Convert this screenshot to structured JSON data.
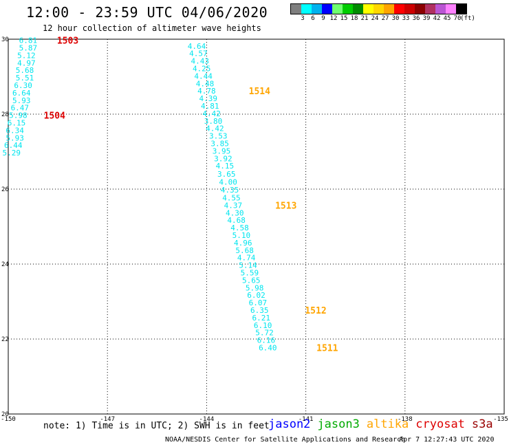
{
  "header": {
    "title": "12:00 - 23:59 UTC 04/06/2020",
    "subtitle": "12 hour collection of altimeter wave heights"
  },
  "legend": {
    "colors": [
      "#7f7f7f",
      "#00ffff",
      "#00b2ee",
      "#0000ff",
      "#6fff6f",
      "#00cc00",
      "#008b00",
      "#ffff00",
      "#ffd700",
      "#ffa500",
      "#ff0000",
      "#cd0000",
      "#8b0000",
      "#b03060",
      "#ba55d3",
      "#ff82ff",
      "#000000"
    ],
    "labels": [
      "3",
      "6",
      "9",
      "12",
      "15",
      "18",
      "21",
      "24",
      "27",
      "30",
      "33",
      "36",
      "39",
      "42",
      "45",
      "70",
      "(ft)"
    ]
  },
  "footer": {
    "note": "note: 1) Time is in UTC; 2) SWH is in feet",
    "satellites": [
      {
        "name": "jason2",
        "color": "#0000ff"
      },
      {
        "name": "jason3",
        "color": "#00aa00"
      },
      {
        "name": "altika",
        "color": "#ffa500"
      },
      {
        "name": "cryosat",
        "color": "#dd0000"
      },
      {
        "name": "s3a",
        "color": "#990000"
      }
    ],
    "credit": "NOAA/NESDIS Center for Satellite Applications and Research",
    "timestamp": "Apr  7 12:27:43 UTC 2020"
  },
  "chart_data": {
    "type": "scatter",
    "xlim": [
      -150,
      -135
    ],
    "ylim": [
      20,
      30
    ],
    "x_ticks": [
      "-150",
      "-147",
      "-144",
      "-141",
      "-138",
      "-135"
    ],
    "y_ticks": [
      "30",
      "28",
      "26",
      "24",
      "22",
      "20"
    ],
    "grid": true,
    "value_color": "#00e5ee",
    "series": [
      {
        "points": [
          {
            "lon": -149.4,
            "lat": 29.97,
            "swh": "6.81"
          },
          {
            "lon": -149.4,
            "lat": 29.77,
            "swh": "5.87"
          },
          {
            "lon": -149.45,
            "lat": 29.57,
            "swh": "5.12"
          },
          {
            "lon": -149.45,
            "lat": 29.37,
            "swh": "4.97"
          },
          {
            "lon": -149.5,
            "lat": 29.17,
            "swh": "5.68"
          },
          {
            "lon": -149.5,
            "lat": 28.97,
            "swh": "5.51"
          },
          {
            "lon": -149.55,
            "lat": 28.77,
            "swh": "6.30"
          },
          {
            "lon": -149.6,
            "lat": 28.57,
            "swh": "6.64"
          },
          {
            "lon": -149.6,
            "lat": 28.37,
            "swh": "5.93"
          },
          {
            "lon": -149.65,
            "lat": 28.17,
            "swh": "6.47"
          },
          {
            "lon": -149.7,
            "lat": 27.97,
            "swh": "5.98"
          },
          {
            "lon": -149.75,
            "lat": 27.77,
            "swh": "6.15"
          },
          {
            "lon": -149.8,
            "lat": 27.57,
            "swh": "6.34"
          },
          {
            "lon": -149.8,
            "lat": 27.37,
            "swh": "5.93"
          },
          {
            "lon": -149.85,
            "lat": 27.17,
            "swh": "6.44"
          },
          {
            "lon": -149.9,
            "lat": 26.97,
            "swh": "5.29"
          }
        ]
      },
      {
        "points": [
          {
            "lon": -144.3,
            "lat": 29.82,
            "swh": "4.64"
          },
          {
            "lon": -144.25,
            "lat": 29.62,
            "swh": "4.57"
          },
          {
            "lon": -144.2,
            "lat": 29.42,
            "swh": "4.43"
          },
          {
            "lon": -144.15,
            "lat": 29.22,
            "swh": "4.25"
          },
          {
            "lon": -144.1,
            "lat": 29.02,
            "swh": "4.44"
          },
          {
            "lon": -144.05,
            "lat": 28.82,
            "swh": "4.48"
          },
          {
            "lon": -144.0,
            "lat": 28.62,
            "swh": "4.78"
          },
          {
            "lon": -143.95,
            "lat": 28.42,
            "swh": "4.39"
          },
          {
            "lon": -143.9,
            "lat": 28.22,
            "swh": "4.81"
          },
          {
            "lon": -143.85,
            "lat": 28.02,
            "swh": "4.42"
          },
          {
            "lon": -143.8,
            "lat": 27.82,
            "swh": "3.80"
          },
          {
            "lon": -143.75,
            "lat": 27.62,
            "swh": "4.42"
          },
          {
            "lon": -143.65,
            "lat": 27.42,
            "swh": "3.53"
          },
          {
            "lon": -143.6,
            "lat": 27.22,
            "swh": "3.85"
          },
          {
            "lon": -143.55,
            "lat": 27.02,
            "swh": "3.95"
          },
          {
            "lon": -143.5,
            "lat": 26.82,
            "swh": "3.92"
          },
          {
            "lon": -143.45,
            "lat": 26.62,
            "swh": "4.15"
          },
          {
            "lon": -143.4,
            "lat": 26.4,
            "swh": "3.65"
          },
          {
            "lon": -143.35,
            "lat": 26.19,
            "swh": "4.00"
          },
          {
            "lon": -143.3,
            "lat": 25.98,
            "swh": "4.35"
          },
          {
            "lon": -143.25,
            "lat": 25.77,
            "swh": "4.55"
          },
          {
            "lon": -143.2,
            "lat": 25.57,
            "swh": "4.37"
          },
          {
            "lon": -143.15,
            "lat": 25.37,
            "swh": "4.30"
          },
          {
            "lon": -143.1,
            "lat": 25.17,
            "swh": "4.68"
          },
          {
            "lon": -143.0,
            "lat": 24.97,
            "swh": "4.58"
          },
          {
            "lon": -142.95,
            "lat": 24.77,
            "swh": "5.10"
          },
          {
            "lon": -142.9,
            "lat": 24.57,
            "swh": "4.96"
          },
          {
            "lon": -142.85,
            "lat": 24.37,
            "swh": "5.68"
          },
          {
            "lon": -142.8,
            "lat": 24.17,
            "swh": "4.74"
          },
          {
            "lon": -142.75,
            "lat": 23.97,
            "swh": "5.14"
          },
          {
            "lon": -142.7,
            "lat": 23.77,
            "swh": "5.59"
          },
          {
            "lon": -142.65,
            "lat": 23.57,
            "swh": "5.65"
          },
          {
            "lon": -142.55,
            "lat": 23.37,
            "swh": "5.98"
          },
          {
            "lon": -142.5,
            "lat": 23.17,
            "swh": "6.02"
          },
          {
            "lon": -142.45,
            "lat": 22.97,
            "swh": "6.07"
          },
          {
            "lon": -142.4,
            "lat": 22.77,
            "swh": "6.35"
          },
          {
            "lon": -142.35,
            "lat": 22.57,
            "swh": "6.21"
          },
          {
            "lon": -142.3,
            "lat": 22.37,
            "swh": "6.10"
          },
          {
            "lon": -142.25,
            "lat": 22.17,
            "swh": "5.72"
          },
          {
            "lon": -142.2,
            "lat": 21.97,
            "swh": "6.16"
          },
          {
            "lon": -142.15,
            "lat": 21.77,
            "swh": "6.40"
          }
        ]
      }
    ],
    "time_labels": [
      {
        "text": "1503",
        "lon": -148.2,
        "lat": 29.97,
        "color": "#dd0000"
      },
      {
        "text": "1504",
        "lon": -148.6,
        "lat": 27.97,
        "color": "#dd0000"
      },
      {
        "text": "1514",
        "lon": -142.4,
        "lat": 28.62,
        "color": "#ffa500"
      },
      {
        "text": "1513",
        "lon": -141.6,
        "lat": 25.57,
        "color": "#ffa500"
      },
      {
        "text": "1512",
        "lon": -140.7,
        "lat": 22.77,
        "color": "#ffa500"
      },
      {
        "text": "1511",
        "lon": -140.35,
        "lat": 21.77,
        "color": "#ffa500"
      }
    ]
  }
}
